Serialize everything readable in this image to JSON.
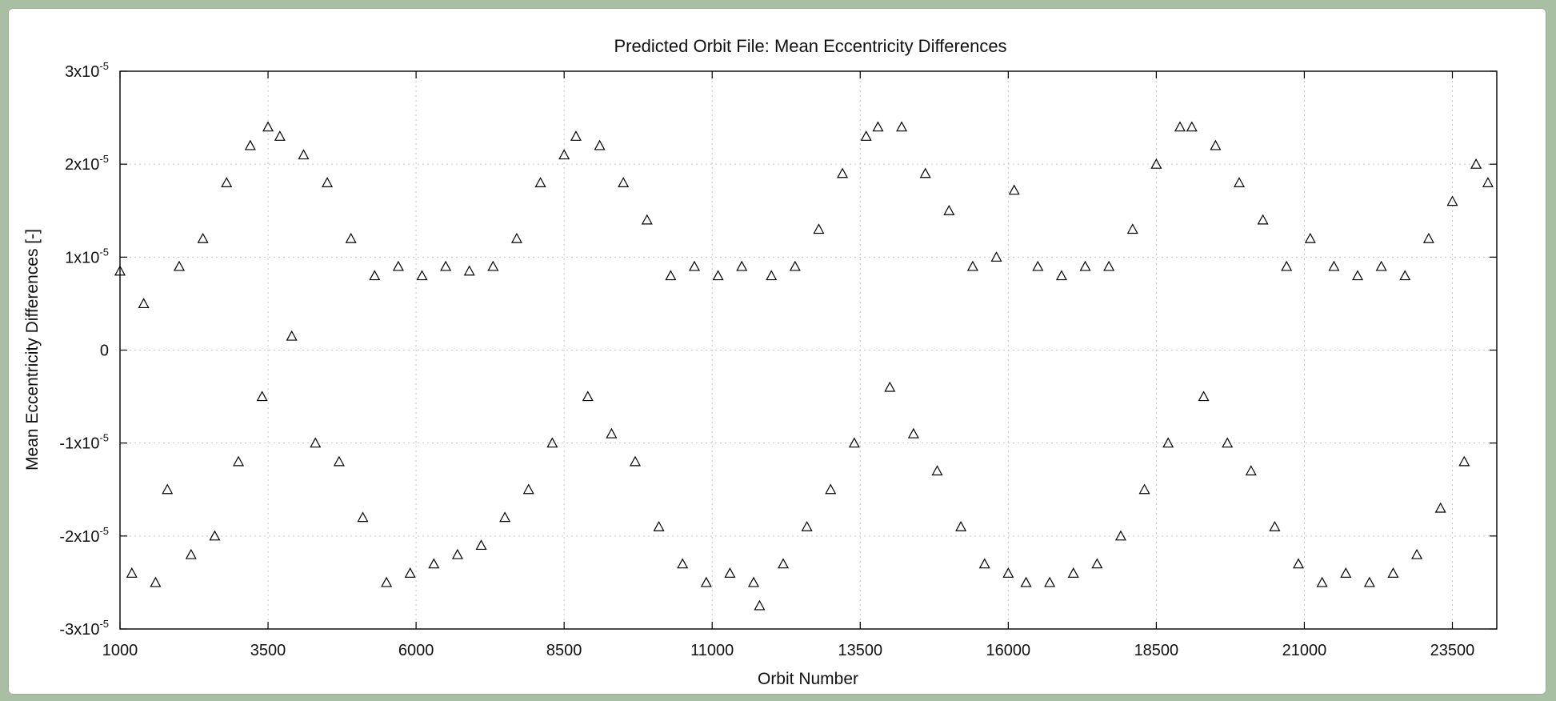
{
  "chart_data": {
    "type": "scatter",
    "title": "Predicted Orbit File: Mean Eccentricity Differences",
    "xlabel": "Orbit Number",
    "ylabel": "Mean Eccentricity Differences [-]",
    "xlim": [
      1000,
      24250
    ],
    "ylim": [
      -3e-05,
      3e-05
    ],
    "x_ticks": [
      {
        "value": 1000,
        "label": "1000"
      },
      {
        "value": 3500,
        "label": "3500"
      },
      {
        "value": 6000,
        "label": "6000"
      },
      {
        "value": 8500,
        "label": "8500"
      },
      {
        "value": 11000,
        "label": "11000"
      },
      {
        "value": 13500,
        "label": "13500"
      },
      {
        "value": 16000,
        "label": "16000"
      },
      {
        "value": 18500,
        "label": "18500"
      },
      {
        "value": 21000,
        "label": "21000"
      },
      {
        "value": 23500,
        "label": "23500"
      }
    ],
    "y_ticks": [
      {
        "value": 3e-05,
        "base": "3x10",
        "exp": "-5"
      },
      {
        "value": 2e-05,
        "base": "2x10",
        "exp": "-5"
      },
      {
        "value": 1e-05,
        "base": "1x10",
        "exp": "-5"
      },
      {
        "value": 0,
        "base": "0",
        "exp": ""
      },
      {
        "value": -1e-05,
        "base": "-1x10",
        "exp": "-5"
      },
      {
        "value": -2e-05,
        "base": "-2x10",
        "exp": "-5"
      },
      {
        "value": -3e-05,
        "base": "-3x10",
        "exp": "-5"
      }
    ],
    "grid": true,
    "marker": "open-triangle",
    "series": [
      {
        "values": [
          [
            1000,
            8.5e-06
          ],
          [
            1200,
            -2.4e-05
          ],
          [
            1400,
            5e-06
          ],
          [
            1600,
            -2.5e-05
          ],
          [
            1800,
            -1.5e-05
          ],
          [
            2000,
            9e-06
          ],
          [
            2200,
            -2.2e-05
          ],
          [
            2400,
            1.2e-05
          ],
          [
            2600,
            -2e-05
          ],
          [
            2800,
            1.8e-05
          ],
          [
            3000,
            -1.2e-05
          ],
          [
            3200,
            2.2e-05
          ],
          [
            3400,
            -5e-06
          ],
          [
            3500,
            2.4e-05
          ],
          [
            3700,
            2.3e-05
          ],
          [
            3900,
            1.5e-06
          ],
          [
            4100,
            2.1e-05
          ],
          [
            4300,
            -1e-05
          ],
          [
            4500,
            1.8e-05
          ],
          [
            4700,
            -1.2e-05
          ],
          [
            4900,
            1.2e-05
          ],
          [
            5100,
            -1.8e-05
          ],
          [
            5300,
            8e-06
          ],
          [
            5500,
            -2.5e-05
          ],
          [
            5700,
            9e-06
          ],
          [
            5900,
            -2.4e-05
          ],
          [
            6100,
            8e-06
          ],
          [
            6300,
            -2.3e-05
          ],
          [
            6500,
            9e-06
          ],
          [
            6700,
            -2.2e-05
          ],
          [
            6900,
            8.5e-06
          ],
          [
            7100,
            -2.1e-05
          ],
          [
            7300,
            9e-06
          ],
          [
            7500,
            -1.8e-05
          ],
          [
            7700,
            1.2e-05
          ],
          [
            7900,
            -1.5e-05
          ],
          [
            8100,
            1.8e-05
          ],
          [
            8300,
            -1e-05
          ],
          [
            8500,
            2.1e-05
          ],
          [
            8700,
            2.3e-05
          ],
          [
            8900,
            -5e-06
          ],
          [
            9100,
            2.2e-05
          ],
          [
            9300,
            -9e-06
          ],
          [
            9500,
            1.8e-05
          ],
          [
            9700,
            -1.2e-05
          ],
          [
            9900,
            1.4e-05
          ],
          [
            10100,
            -1.9e-05
          ],
          [
            10300,
            8e-06
          ],
          [
            10500,
            -2.3e-05
          ],
          [
            10700,
            9e-06
          ],
          [
            10900,
            -2.5e-05
          ],
          [
            11100,
            8e-06
          ],
          [
            11300,
            -2.4e-05
          ],
          [
            11500,
            9e-06
          ],
          [
            11700,
            -2.5e-05
          ],
          [
            11800,
            -2.75e-05
          ],
          [
            12000,
            8e-06
          ],
          [
            12200,
            -2.3e-05
          ],
          [
            12400,
            9e-06
          ],
          [
            12600,
            -1.9e-05
          ],
          [
            12800,
            1.3e-05
          ],
          [
            13000,
            -1.5e-05
          ],
          [
            13200,
            1.9e-05
          ],
          [
            13400,
            -1e-05
          ],
          [
            13600,
            2.3e-05
          ],
          [
            13800,
            2.4e-05
          ],
          [
            14000,
            -4e-06
          ],
          [
            14200,
            2.4e-05
          ],
          [
            14400,
            -9e-06
          ],
          [
            14600,
            1.9e-05
          ],
          [
            14800,
            -1.3e-05
          ],
          [
            15000,
            1.5e-05
          ],
          [
            15200,
            -1.9e-05
          ],
          [
            15400,
            9e-06
          ],
          [
            15600,
            -2.3e-05
          ],
          [
            15800,
            1e-05
          ],
          [
            16000,
            -2.4e-05
          ],
          [
            16100,
            1.72e-05
          ],
          [
            16300,
            -2.5e-05
          ],
          [
            16500,
            9e-06
          ],
          [
            16700,
            -2.5e-05
          ],
          [
            16900,
            8e-06
          ],
          [
            17100,
            -2.4e-05
          ],
          [
            17300,
            9e-06
          ],
          [
            17500,
            -2.3e-05
          ],
          [
            17700,
            9e-06
          ],
          [
            17900,
            -2e-05
          ],
          [
            18100,
            1.3e-05
          ],
          [
            18300,
            -1.5e-05
          ],
          [
            18500,
            2e-05
          ],
          [
            18700,
            -1e-05
          ],
          [
            18900,
            2.4e-05
          ],
          [
            19100,
            2.4e-05
          ],
          [
            19300,
            -5e-06
          ],
          [
            19500,
            2.2e-05
          ],
          [
            19700,
            -1e-05
          ],
          [
            19900,
            1.8e-05
          ],
          [
            20100,
            -1.3e-05
          ],
          [
            20300,
            1.4e-05
          ],
          [
            20500,
            -1.9e-05
          ],
          [
            20700,
            9e-06
          ],
          [
            20900,
            -2.3e-05
          ],
          [
            21100,
            1.2e-05
          ],
          [
            21300,
            -2.5e-05
          ],
          [
            21500,
            9e-06
          ],
          [
            21700,
            -2.4e-05
          ],
          [
            21900,
            8e-06
          ],
          [
            22100,
            -2.5e-05
          ],
          [
            22300,
            9e-06
          ],
          [
            22500,
            -2.4e-05
          ],
          [
            22700,
            8e-06
          ],
          [
            22900,
            -2.2e-05
          ],
          [
            23100,
            1.2e-05
          ],
          [
            23300,
            -1.7e-05
          ],
          [
            23500,
            1.6e-05
          ],
          [
            23700,
            -1.2e-05
          ],
          [
            23900,
            2e-05
          ],
          [
            24100,
            1.8e-05
          ]
        ]
      }
    ]
  }
}
